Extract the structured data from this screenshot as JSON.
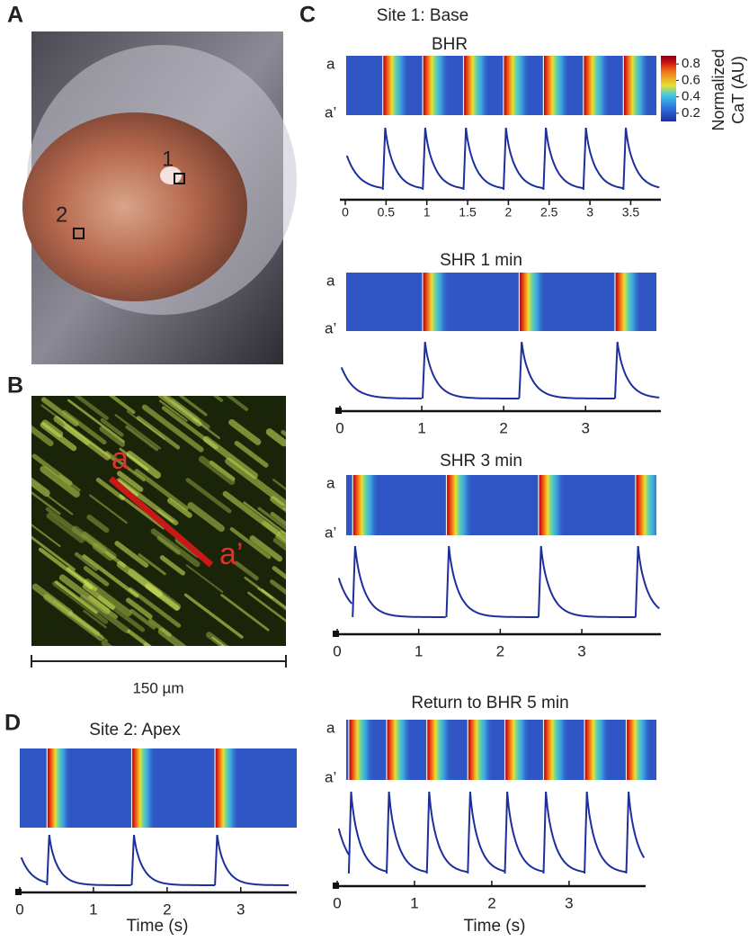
{
  "panel_labels": {
    "a": "A",
    "b": "B",
    "c": "C",
    "d": "D"
  },
  "panel_a": {
    "site_labels": [
      "1",
      "2"
    ]
  },
  "panel_b": {
    "line_labels": [
      "a",
      "a’"
    ],
    "scale_label": "150 µm"
  },
  "panel_c": {
    "title": "Site 1: Base",
    "x_label": "Time (s)",
    "colorbar": {
      "label_lines": [
        "Normalized",
        "CaT (AU)"
      ],
      "lim": [
        0.1,
        0.9
      ],
      "ticks": [
        0.2,
        0.4,
        0.6,
        0.8
      ]
    },
    "recordings": [
      {
        "title": "BHR",
        "row_labels": [
          "a",
          "a’"
        ],
        "xlim": [
          0,
          3.87
        ],
        "xticks": [
          0,
          0.5,
          1,
          1.5,
          2,
          2.5,
          3,
          3.5
        ],
        "beats": [
          0.46,
          0.95,
          1.45,
          1.94,
          2.43,
          2.92,
          3.41
        ]
      },
      {
        "title": "SHR 1 min",
        "row_labels": [
          "a",
          "a’"
        ],
        "xlim": [
          0,
          3.92
        ],
        "xticks": [
          0,
          1,
          2,
          3
        ],
        "beats": [
          1.01,
          2.19,
          3.36
        ]
      },
      {
        "title": "SHR 3 min",
        "row_labels": [
          "a",
          "a’"
        ],
        "xlim": [
          0,
          3.97
        ],
        "xticks": [
          0,
          1,
          2,
          3
        ],
        "beats": [
          0.19,
          1.34,
          2.47,
          3.66
        ]
      },
      {
        "title": "Return to BHR 5 min",
        "row_labels": [
          "a",
          "a’"
        ],
        "xlim": [
          0,
          3.99
        ],
        "xticks": [
          0,
          1,
          2,
          3
        ],
        "beats": [
          0.15,
          0.64,
          1.16,
          1.69,
          2.17,
          2.67,
          3.2,
          3.74
        ]
      }
    ]
  },
  "panel_d": {
    "title": "Site 2: Apex",
    "x_label": "Time (s)",
    "xlim": [
      0,
      3.76
    ],
    "xticks": [
      0,
      1,
      2,
      3
    ],
    "beats": [
      0.37,
      1.52,
      2.65
    ]
  }
}
